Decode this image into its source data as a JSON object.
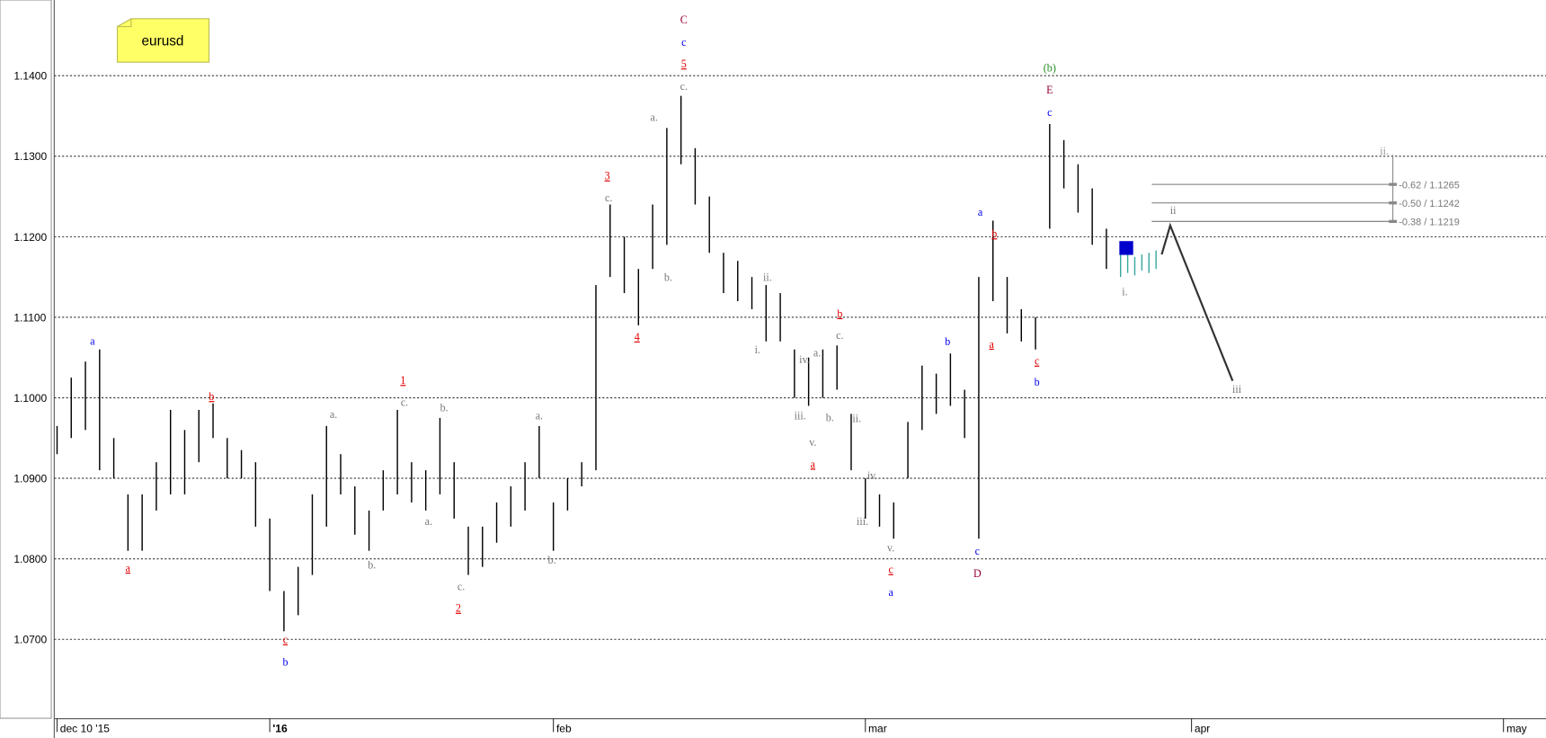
{
  "chart_data": {
    "type": "bar-hl",
    "symbol": "eurusd",
    "ylim": [
      1.0602,
      1.1494
    ],
    "yticks": [
      {
        "value": 1.07,
        "label": "1.0700"
      },
      {
        "value": 1.08,
        "label": "1.0800"
      },
      {
        "value": 1.09,
        "label": "1.0900"
      },
      {
        "value": 1.1,
        "label": "1.1000"
      },
      {
        "value": 1.11,
        "label": "1.1100"
      },
      {
        "value": 1.12,
        "label": "1.1200"
      },
      {
        "value": 1.13,
        "label": "1.1300"
      },
      {
        "value": 1.14,
        "label": "1.1400"
      }
    ],
    "xlim": [
      -0.2,
      105
    ],
    "xticks": [
      {
        "value": 0,
        "label": "dec 10 '15"
      },
      {
        "value": 15,
        "label": "'16"
      },
      {
        "value": 35,
        "label": "feb"
      },
      {
        "value": 57,
        "label": "mar"
      },
      {
        "value": 80,
        "label": "apr"
      },
      {
        "value": 102,
        "label": "may"
      }
    ],
    "grid": true,
    "series": [
      {
        "color": "#000000",
        "x": [
          0,
          1,
          2,
          3,
          4,
          5,
          6,
          7,
          8,
          9,
          10,
          11,
          12,
          13,
          14,
          15,
          16,
          17,
          18,
          19,
          20,
          21,
          22,
          23,
          24,
          25,
          26,
          27,
          28,
          29,
          30,
          31,
          32,
          33,
          34,
          35,
          36,
          37,
          38,
          39,
          40,
          41,
          42,
          43,
          44,
          45,
          46,
          47,
          48,
          49,
          50,
          51,
          52,
          53,
          54,
          55,
          56,
          57,
          58,
          59,
          60,
          61,
          62,
          63,
          64,
          65,
          66,
          67,
          68,
          69,
          70,
          71,
          72,
          73,
          74
        ],
        "high": [
          1.0965,
          1.1025,
          1.1045,
          1.106,
          1.095,
          1.088,
          1.088,
          1.092,
          1.0985,
          1.096,
          1.0985,
          1.0993,
          1.095,
          1.0935,
          1.092,
          1.085,
          1.076,
          1.079,
          1.088,
          1.0965,
          1.093,
          1.089,
          1.086,
          1.091,
          1.0985,
          1.092,
          1.091,
          1.0975,
          1.092,
          1.084,
          1.084,
          1.087,
          1.089,
          1.092,
          1.0965,
          1.087,
          1.09,
          1.092,
          1.114,
          1.124,
          1.12,
          1.116,
          1.124,
          1.1335,
          1.1375,
          1.131,
          1.125,
          1.118,
          1.117,
          1.115,
          1.114,
          1.113,
          1.106,
          1.105,
          1.106,
          1.1065,
          1.098,
          1.09,
          1.088,
          1.087,
          1.097,
          1.104,
          1.103,
          1.1055,
          1.101,
          1.115,
          1.122,
          1.115,
          1.111,
          1.11,
          1.134,
          1.132,
          1.129,
          1.126,
          1.121
        ],
        "low": [
          1.093,
          1.095,
          1.096,
          1.091,
          1.09,
          1.081,
          1.081,
          1.086,
          1.088,
          1.088,
          1.092,
          1.095,
          1.09,
          1.09,
          1.084,
          1.076,
          1.071,
          1.073,
          1.078,
          1.084,
          1.088,
          1.083,
          1.081,
          1.086,
          1.088,
          1.087,
          1.086,
          1.088,
          1.085,
          1.078,
          1.079,
          1.082,
          1.084,
          1.086,
          1.09,
          1.081,
          1.086,
          1.089,
          1.091,
          1.115,
          1.113,
          1.109,
          1.116,
          1.119,
          1.129,
          1.124,
          1.118,
          1.113,
          1.112,
          1.111,
          1.107,
          1.107,
          1.1,
          1.099,
          1.1,
          1.101,
          1.091,
          1.085,
          1.084,
          1.0825,
          1.09,
          1.096,
          1.098,
          1.099,
          1.095,
          1.0825,
          1.112,
          1.108,
          1.107,
          1.106,
          1.121,
          1.126,
          1.123,
          1.119,
          1.116
        ]
      },
      {
        "color": "#3aa8a0",
        "x": [
          75,
          75.5,
          76,
          76.5,
          77,
          77.5
        ],
        "high": [
          1.1185,
          1.118,
          1.1175,
          1.1178,
          1.118,
          1.1183
        ],
        "low": [
          1.115,
          1.1155,
          1.1152,
          1.1158,
          1.1155,
          1.116
        ]
      }
    ],
    "marker": {
      "x": 75.4,
      "y": 1.1186,
      "color": "#0000cc"
    },
    "projection": {
      "x": [
        77.9,
        78.5,
        82.9
      ],
      "y": [
        1.1178,
        1.1214,
        1.1021
      ],
      "color": "#333333"
    },
    "fib": {
      "x": [
        77.2,
        94.2
      ],
      "levels": [
        {
          "value": 1.1265,
          "label": "-0.62 / 1.1265"
        },
        {
          "value": 1.1242,
          "label": "-0.50 / 1.1242"
        },
        {
          "value": 1.1219,
          "label": "-0.38 / 1.1219"
        }
      ]
    },
    "annotations": [
      {
        "text": "a",
        "x": 2.5,
        "y": 1.1071,
        "color": "#0000ee",
        "underline": false
      },
      {
        "text": "a",
        "x": 5.0,
        "y": 1.0789,
        "color": "#e00000",
        "underline": true
      },
      {
        "text": "b",
        "x": 10.9,
        "y": 1.1002,
        "color": "#e00000",
        "underline": true
      },
      {
        "text": "c",
        "x": 16.1,
        "y": 1.07,
        "color": "#e00000",
        "underline": true
      },
      {
        "text": "b",
        "x": 16.1,
        "y": 1.0672,
        "color": "#0000ee",
        "underline": false
      },
      {
        "text": "a.",
        "x": 19.5,
        "y": 1.098,
        "color": "#777777",
        "underline": false
      },
      {
        "text": "b.",
        "x": 22.2,
        "y": 1.0793,
        "color": "#777777",
        "underline": false
      },
      {
        "text": "1",
        "x": 24.4,
        "y": 1.1022,
        "color": "#e00000",
        "underline": true
      },
      {
        "text": "c.",
        "x": 24.5,
        "y": 1.0995,
        "color": "#777777",
        "underline": false
      },
      {
        "text": "a.",
        "x": 26.2,
        "y": 1.0847,
        "color": "#777777",
        "underline": false
      },
      {
        "text": "b.",
        "x": 27.3,
        "y": 1.0988,
        "color": "#777777",
        "underline": false
      },
      {
        "text": "c.",
        "x": 28.5,
        "y": 1.0766,
        "color": "#777777",
        "underline": false
      },
      {
        "text": "2",
        "x": 28.3,
        "y": 1.0739,
        "color": "#e00000",
        "underline": true
      },
      {
        "text": "a.",
        "x": 34.0,
        "y": 1.0978,
        "color": "#777777",
        "underline": false
      },
      {
        "text": "b.",
        "x": 34.9,
        "y": 1.0799,
        "color": "#777777",
        "underline": false
      },
      {
        "text": "3",
        "x": 38.8,
        "y": 1.1276,
        "color": "#e00000",
        "underline": true
      },
      {
        "text": "c.",
        "x": 38.9,
        "y": 1.1249,
        "color": "#777777",
        "underline": false
      },
      {
        "text": "4",
        "x": 40.9,
        "y": 1.1076,
        "color": "#e00000",
        "underline": true
      },
      {
        "text": "a.",
        "x": 42.1,
        "y": 1.1349,
        "color": "#777777",
        "underline": false
      },
      {
        "text": "b.",
        "x": 43.1,
        "y": 1.115,
        "color": "#777777",
        "underline": false
      },
      {
        "text": "C",
        "x": 44.2,
        "y": 1.147,
        "color": "#990033",
        "underline": false
      },
      {
        "text": "c",
        "x": 44.2,
        "y": 1.1442,
        "color": "#0000ee",
        "underline": false
      },
      {
        "text": "5",
        "x": 44.2,
        "y": 1.1415,
        "color": "#e00000",
        "underline": true
      },
      {
        "text": "c.",
        "x": 44.2,
        "y": 1.1387,
        "color": "#777777",
        "underline": false
      },
      {
        "text": "ii.",
        "x": 50.1,
        "y": 1.115,
        "color": "#777777",
        "underline": false
      },
      {
        "text": "i.",
        "x": 49.4,
        "y": 1.106,
        "color": "#777777",
        "underline": false
      },
      {
        "text": "iv.",
        "x": 52.7,
        "y": 1.1048,
        "color": "#777777",
        "underline": false
      },
      {
        "text": "a.",
        "x": 53.6,
        "y": 1.1056,
        "color": "#777777",
        "underline": false
      },
      {
        "text": "iii.",
        "x": 52.4,
        "y": 1.0978,
        "color": "#777777",
        "underline": false
      },
      {
        "text": "v.",
        "x": 53.3,
        "y": 1.0945,
        "color": "#777777",
        "underline": false
      },
      {
        "text": "b.",
        "x": 54.5,
        "y": 1.0976,
        "color": "#777777",
        "underline": false
      },
      {
        "text": "a",
        "x": 53.3,
        "y": 1.0918,
        "color": "#e00000",
        "underline": true
      },
      {
        "text": "b",
        "x": 55.2,
        "y": 1.1105,
        "color": "#e00000",
        "underline": true
      },
      {
        "text": "c.",
        "x": 55.2,
        "y": 1.1078,
        "color": "#777777",
        "underline": false
      },
      {
        "text": "ii.",
        "x": 56.4,
        "y": 1.0975,
        "color": "#777777",
        "underline": false
      },
      {
        "text": "iv.",
        "x": 57.5,
        "y": 1.0904,
        "color": "#777777",
        "underline": false
      },
      {
        "text": "iii.",
        "x": 56.8,
        "y": 1.0847,
        "color": "#777777",
        "underline": false
      },
      {
        "text": "v.",
        "x": 58.8,
        "y": 1.0814,
        "color": "#777777",
        "underline": false
      },
      {
        "text": "c",
        "x": 58.8,
        "y": 1.0787,
        "color": "#e00000",
        "underline": true
      },
      {
        "text": "a",
        "x": 58.8,
        "y": 1.0759,
        "color": "#0000ee",
        "underline": false
      },
      {
        "text": "b",
        "x": 62.8,
        "y": 1.107,
        "color": "#0000ee",
        "underline": false
      },
      {
        "text": "c",
        "x": 64.9,
        "y": 1.081,
        "color": "#0000ee",
        "underline": false
      },
      {
        "text": "D",
        "x": 64.9,
        "y": 1.0782,
        "color": "#990033",
        "underline": false
      },
      {
        "text": "a",
        "x": 65.1,
        "y": 1.1231,
        "color": "#0000ee",
        "underline": false
      },
      {
        "text": "b",
        "x": 66.1,
        "y": 1.1204,
        "color": "#e00000",
        "underline": true
      },
      {
        "text": "a",
        "x": 65.9,
        "y": 1.1067,
        "color": "#e00000",
        "underline": true
      },
      {
        "text": "c",
        "x": 69.1,
        "y": 1.1046,
        "color": "#e00000",
        "underline": true
      },
      {
        "text": "b",
        "x": 69.1,
        "y": 1.102,
        "color": "#0000ee",
        "underline": false
      },
      {
        "text": "(b)",
        "x": 70.0,
        "y": 1.141,
        "color": "#228b22",
        "underline": false
      },
      {
        "text": "E",
        "x": 70.0,
        "y": 1.1383,
        "color": "#990033",
        "underline": false
      },
      {
        "text": "c",
        "x": 70.0,
        "y": 1.1355,
        "color": "#0000ee",
        "underline": false
      },
      {
        "text": "i.",
        "x": 75.3,
        "y": 1.1132,
        "color": "#777777",
        "underline": false
      },
      {
        "text": "ii",
        "x": 78.7,
        "y": 1.1233,
        "color": "#777777",
        "underline": false
      },
      {
        "text": "iii",
        "x": 83.2,
        "y": 1.1011,
        "color": "#777777",
        "underline": false
      },
      {
        "text": "ii.",
        "x": 93.6,
        "y": 1.1307,
        "color": "#999999",
        "underline": false
      }
    ]
  }
}
